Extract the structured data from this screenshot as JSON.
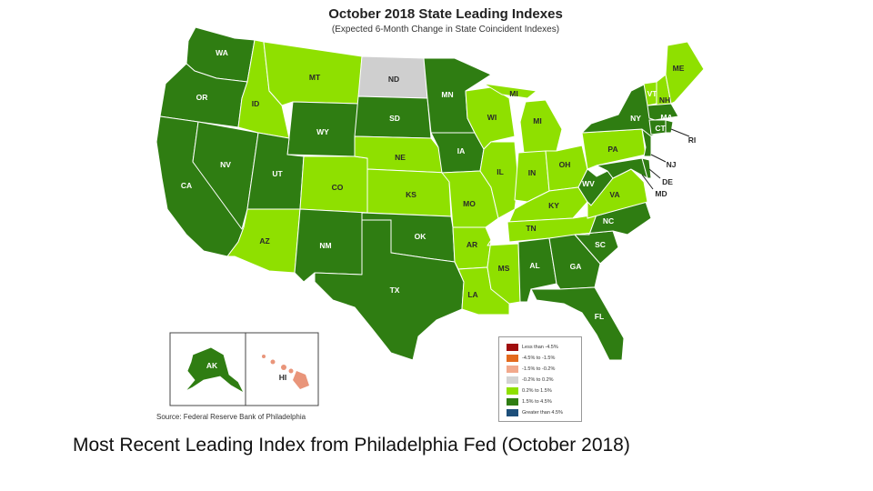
{
  "map": {
    "title": "October 2018 State Leading Indexes",
    "subtitle": "(Expected 6-Month Change in State Coincident Indexes)",
    "source": "Source: Federal Reserve Bank of Philadelphia",
    "colors": {
      "dark_green": "#2f7d12",
      "light_green": "#8fe000",
      "gray": "#cfcfcf",
      "hawaii_salmon": "#e9957a"
    },
    "legend": [
      {
        "label": "Less than -4.5%",
        "color": "#a00d0d"
      },
      {
        "label": "-4.5% to -1.5%",
        "color": "#e36a1e"
      },
      {
        "label": "-1.5% to -0.2%",
        "color": "#f2a98c"
      },
      {
        "label": "-0.2% to 0.2%",
        "color": "#d3d3d3"
      },
      {
        "label": "0.2% to 1.5%",
        "color": "#8fe000"
      },
      {
        "label": "1.5% to 4.5%",
        "color": "#2f7d12"
      },
      {
        "label": "Greater than 4.5%",
        "color": "#1d4f7a"
      }
    ],
    "states": {
      "WA": "WA",
      "OR": "OR",
      "CA": "CA",
      "NV": "NV",
      "ID": "ID",
      "MT": "MT",
      "WY": "WY",
      "UT": "UT",
      "AZ": "AZ",
      "CO": "CO",
      "NM": "NM",
      "ND": "ND",
      "SD": "SD",
      "NE": "NE",
      "KS": "KS",
      "OK": "OK",
      "TX": "TX",
      "MN": "MN",
      "IA": "IA",
      "MO": "MO",
      "AR": "AR",
      "LA": "LA",
      "WI": "WI",
      "IL": "IL",
      "MS": "MS",
      "MI": "MI",
      "IN": "IN",
      "KY": "KY",
      "TN": "TN",
      "AL": "AL",
      "OH": "OH",
      "WV": "WV",
      "VA": "VA",
      "NC": "NC",
      "SC": "SC",
      "GA": "GA",
      "FL": "FL",
      "PA": "PA",
      "NY": "NY",
      "VT": "VT",
      "NH": "NH",
      "ME": "ME",
      "MA": "MA",
      "CT": "CT",
      "RI": "RI",
      "NJ": "NJ",
      "DE": "DE",
      "MD": "MD",
      "AK": "AK",
      "HI": "HI"
    }
  },
  "caption": "Most Recent Leading Index from Philadelphia Fed (October 2018)"
}
